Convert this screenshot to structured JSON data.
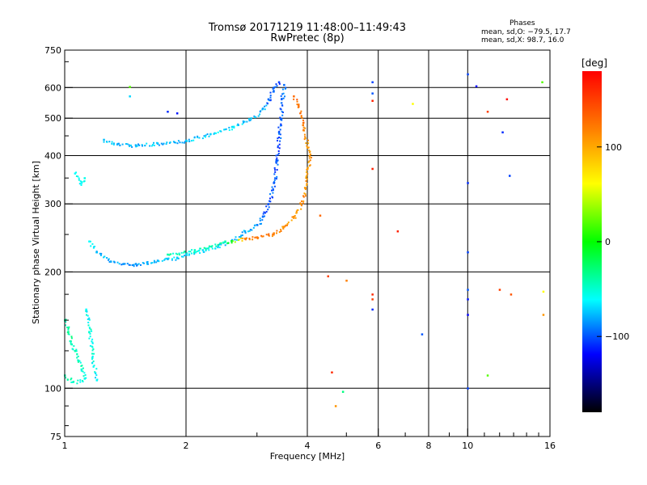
{
  "chart_data": {
    "type": "scatter",
    "title": "Tromsø 20171219 11:48:00–11:49:43",
    "subtitle": "RwPretec (8p)",
    "xlabel": "Frequency [MHz]",
    "ylabel": "Stationary phase Virtual Height [km]",
    "xscale": "log",
    "yscale": "log",
    "xlim": [
      1,
      16
    ],
    "ylim": [
      75,
      750
    ],
    "x_ticks": [
      1,
      2,
      4,
      6,
      8,
      10,
      16
    ],
    "x_ticks_labels": [
      "1",
      "2",
      "4",
      "6",
      "8",
      "10",
      "16"
    ],
    "y_ticks": [
      75,
      100,
      200,
      300,
      400,
      500,
      600,
      750
    ],
    "y_ticks_labels": [
      "75",
      "100",
      "200",
      "300",
      "400",
      "500",
      "600",
      "750"
    ],
    "grid": true,
    "stats_header": "Phases",
    "stats_lines": [
      "mean, sd,O: −79.5, 17.7",
      "mean, sd,X:  98.7, 16.0"
    ],
    "colorbar": {
      "label": "[deg]",
      "ticks": [
        100,
        0,
        -100
      ],
      "tick_labels": [
        "100",
        "0",
        "−100"
      ],
      "range": [
        -180,
        180
      ],
      "colors_top_to_bottom": [
        "#ff0000",
        "#ff7f00",
        "#ffff00",
        "#00ff00",
        "#00ffff",
        "#0000ff",
        "#000000"
      ]
    },
    "series": [
      {
        "points": [
          [
            1.15,
            240,
            -60
          ],
          [
            1.2,
            225,
            -75
          ],
          [
            1.3,
            213,
            -80
          ],
          [
            1.4,
            210,
            -85
          ],
          [
            1.5,
            210,
            -85
          ],
          [
            1.6,
            212,
            -80
          ],
          [
            1.7,
            214,
            -78
          ],
          [
            1.8,
            216,
            -75
          ],
          [
            1.9,
            218,
            -72
          ],
          [
            2.0,
            222,
            -70
          ],
          [
            2.2,
            228,
            -68
          ],
          [
            2.4,
            234,
            -70
          ],
          [
            2.6,
            242,
            -75
          ],
          [
            2.8,
            255,
            -80
          ],
          [
            3.0,
            265,
            -90
          ],
          [
            3.1,
            278,
            -95
          ],
          [
            3.2,
            300,
            -100
          ],
          [
            3.3,
            340,
            -100
          ],
          [
            3.35,
            390,
            -102
          ],
          [
            3.4,
            460,
            -100
          ],
          [
            3.45,
            560,
            -98
          ],
          [
            3.5,
            610,
            -95
          ],
          [
            1.25,
            440,
            -75
          ],
          [
            1.35,
            428,
            -80
          ],
          [
            1.5,
            426,
            -78
          ],
          [
            1.7,
            430,
            -75
          ],
          [
            2.0,
            438,
            -72
          ],
          [
            2.3,
            455,
            -70
          ],
          [
            2.6,
            475,
            -68
          ],
          [
            2.9,
            500,
            -72
          ],
          [
            3.1,
            530,
            -80
          ],
          [
            3.2,
            560,
            -95
          ],
          [
            3.3,
            600,
            -100
          ],
          [
            3.4,
            620,
            -105
          ],
          [
            1.06,
            360,
            -60
          ],
          [
            1.1,
            340,
            -60
          ],
          [
            1.12,
            350,
            -55
          ]
        ],
        "mode_spread": 1
      },
      {
        "points": [
          [
            1.8,
            222,
            -40
          ],
          [
            2.1,
            228,
            -45
          ],
          [
            2.5,
            240,
            -40
          ],
          [
            2.8,
            244,
            120
          ],
          [
            3.0,
            246,
            125
          ],
          [
            3.3,
            252,
            120
          ],
          [
            3.5,
            262,
            115
          ],
          [
            3.7,
            278,
            110
          ],
          [
            3.85,
            300,
            112
          ],
          [
            3.95,
            330,
            110
          ],
          [
            4.0,
            370,
            108
          ],
          [
            4.05,
            400,
            110
          ],
          [
            4.0,
            420,
            105
          ],
          [
            3.9,
            480,
            120
          ],
          [
            3.8,
            540,
            125
          ],
          [
            3.7,
            570,
            130
          ]
        ],
        "mode_spread": 1
      },
      {
        "points": [
          [
            1.0,
            150,
            -40
          ],
          [
            1.02,
            140,
            -35
          ],
          [
            1.04,
            130,
            -45
          ],
          [
            1.06,
            125,
            -40
          ],
          [
            1.08,
            118,
            -45
          ],
          [
            1.1,
            112,
            -50
          ],
          [
            1.12,
            106,
            -55
          ],
          [
            1.05,
            104,
            -45
          ],
          [
            1.0,
            108,
            -40
          ],
          [
            1.13,
            160,
            -60
          ],
          [
            1.15,
            140,
            -50
          ],
          [
            1.17,
            120,
            -55
          ],
          [
            1.2,
            105,
            -60
          ]
        ],
        "mode_spread": 1
      },
      {
        "points": [
          [
            1.45,
            603,
            20
          ],
          [
            1.45,
            570,
            -70
          ],
          [
            1.8,
            520,
            -110
          ],
          [
            1.9,
            515,
            -115
          ],
          [
            4.3,
            280,
            130
          ],
          [
            4.5,
            195,
            150
          ],
          [
            4.6,
            110,
            160
          ],
          [
            4.7,
            90,
            110
          ],
          [
            4.9,
            98,
            -30
          ],
          [
            5.0,
            190,
            120
          ],
          [
            5.8,
            620,
            -105
          ],
          [
            5.8,
            580,
            -100
          ],
          [
            5.8,
            555,
            165
          ],
          [
            5.8,
            370,
            165
          ],
          [
            5.8,
            175,
            160
          ],
          [
            5.8,
            170,
            150
          ],
          [
            5.8,
            160,
            -110
          ],
          [
            6.7,
            255,
            165
          ],
          [
            7.3,
            545,
            60
          ],
          [
            7.7,
            138,
            -100
          ],
          [
            10.0,
            650,
            -105
          ],
          [
            10.0,
            340,
            -110
          ],
          [
            10.0,
            225,
            -105
          ],
          [
            10.0,
            180,
            -100
          ],
          [
            10.0,
            170,
            -115
          ],
          [
            10.0,
            155,
            -120
          ],
          [
            10.0,
            100,
            -105
          ],
          [
            10.5,
            605,
            -120
          ],
          [
            11.2,
            520,
            150
          ],
          [
            11.2,
            108,
            20
          ],
          [
            12.0,
            180,
            150
          ],
          [
            12.2,
            460,
            -110
          ],
          [
            12.5,
            560,
            175
          ],
          [
            12.7,
            355,
            -105
          ],
          [
            12.8,
            175,
            140
          ],
          [
            15.3,
            620,
            20
          ],
          [
            15.4,
            178,
            60
          ],
          [
            15.4,
            155,
            110
          ]
        ],
        "mode_spread": 0
      }
    ]
  }
}
